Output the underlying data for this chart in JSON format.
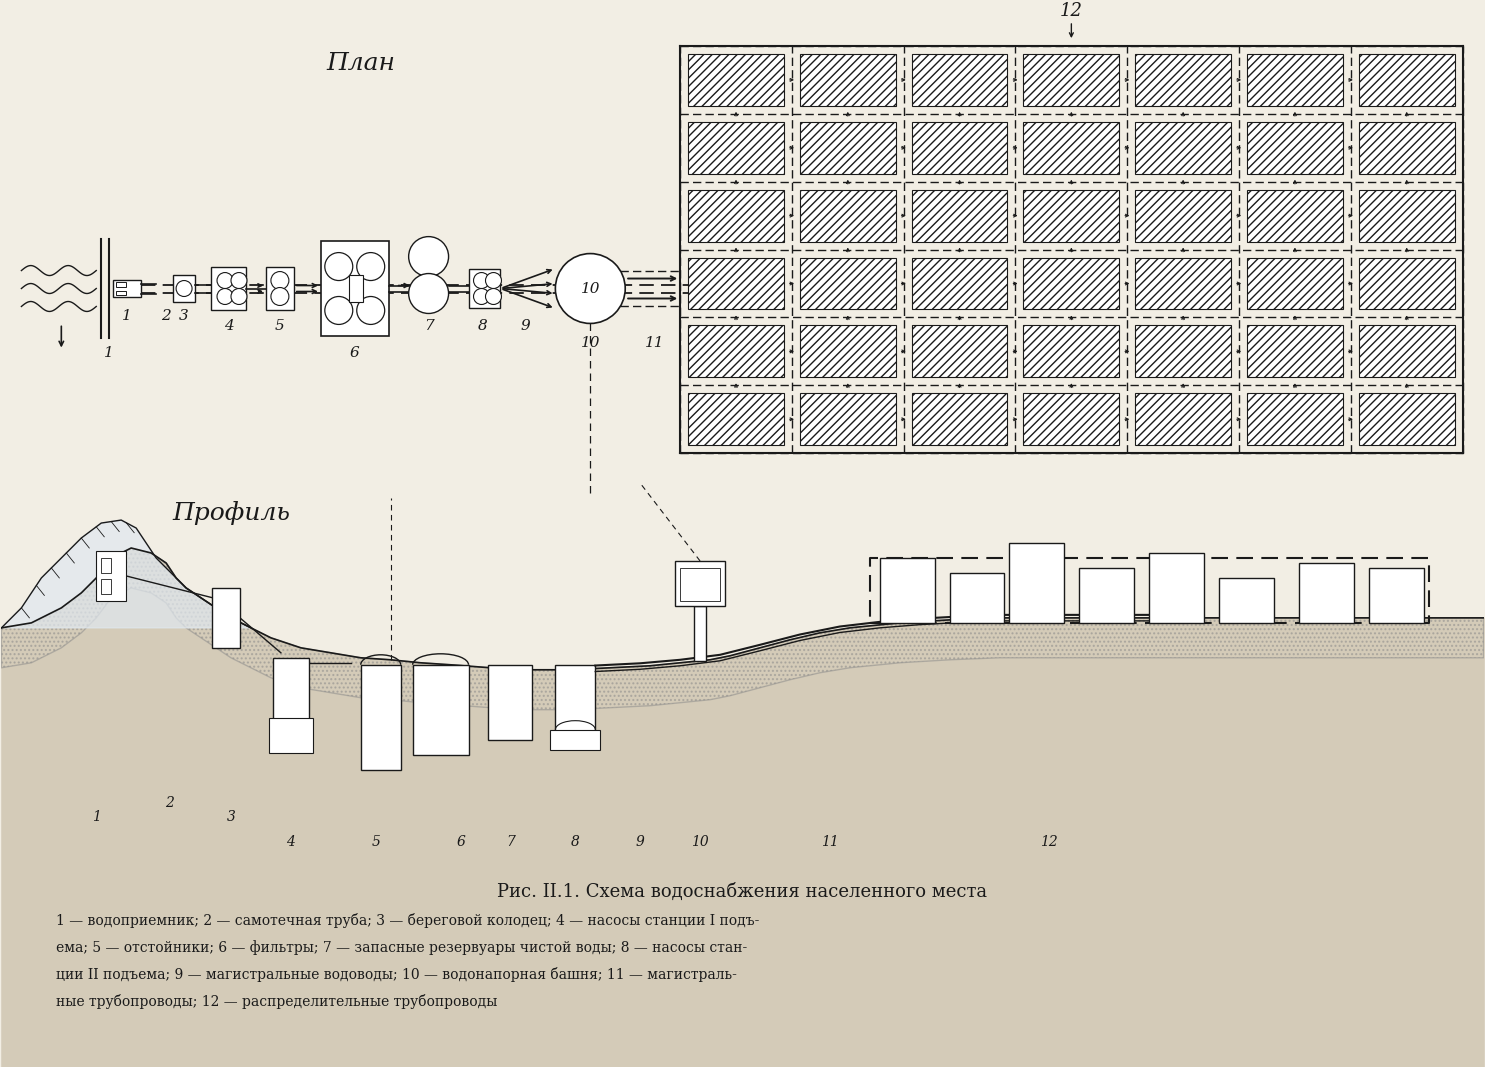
{
  "title_plan": "План",
  "title_profile": "Профиль",
  "caption": "Рис. II.1. Схема водоснабжения населенного места",
  "legend_line1": "1 — водоприемник; 2 — самотечная труба; 3 — береговой колодец; 4 — насосы станции I подъ-",
  "legend_line2": "ема; 5 — отстойники; 6 — фильтры; 7 — запасные резервуары чистой воды; 8 — насосы стан-",
  "legend_line3": "ции II подъема; 9 — магистральные водоводы; 10 — водонапорная башня; 11 — магистраль-",
  "legend_line4": "ные трубопроводы; 12 — распределительные трубопроводы",
  "bg_color": "#f2eee4",
  "lc": "#1a1a1a"
}
